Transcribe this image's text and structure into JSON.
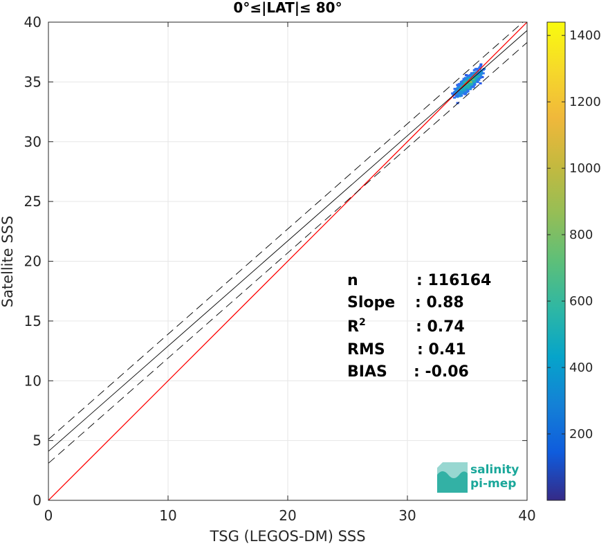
{
  "chart_data": {
    "type": "heatmap",
    "title": "0°≤|LAT|≤ 80°",
    "xlabel": "TSG (LEGOS-DM) SSS",
    "ylabel": "Satellite SSS",
    "xlim": [
      0,
      40
    ],
    "ylim": [
      0,
      40
    ],
    "xticks": [
      0,
      10,
      20,
      30,
      40
    ],
    "yticks": [
      0,
      5,
      10,
      15,
      20,
      25,
      30,
      35,
      40
    ],
    "grid": true,
    "colorbar": {
      "range": [
        0,
        1440
      ],
      "ticks": [
        200,
        400,
        600,
        800,
        1000,
        1200,
        1400
      ],
      "colormap": "parula"
    },
    "lines": [
      {
        "name": "1:1",
        "slope": 1.0,
        "intercept": 0.0,
        "color": "#ff0000",
        "style": "solid"
      },
      {
        "name": "fit",
        "slope": 0.88,
        "intercept": 4.1,
        "color": "#000000",
        "style": "solid"
      },
      {
        "name": "fit+rms",
        "slope": 0.88,
        "intercept": 5.1,
        "color": "#000000",
        "style": "dashed"
      },
      {
        "name": "fit-rms",
        "slope": 0.88,
        "intercept": 3.1,
        "color": "#000000",
        "style": "dashed"
      }
    ],
    "density_center": {
      "x": 35.0,
      "y": 35.0
    },
    "stats": [
      {
        "label": "n",
        "value": ": 116164"
      },
      {
        "label": "Slope",
        "value": ": 0.88"
      },
      {
        "label": "R",
        "sup": "2",
        "value": ": 0.74"
      },
      {
        "label": "RMS",
        "value": ": 0.41"
      },
      {
        "label": "BIAS",
        "value": ": -0.06"
      }
    ]
  },
  "logo": {
    "line1": "salinity",
    "line2": "pi-mep"
  }
}
